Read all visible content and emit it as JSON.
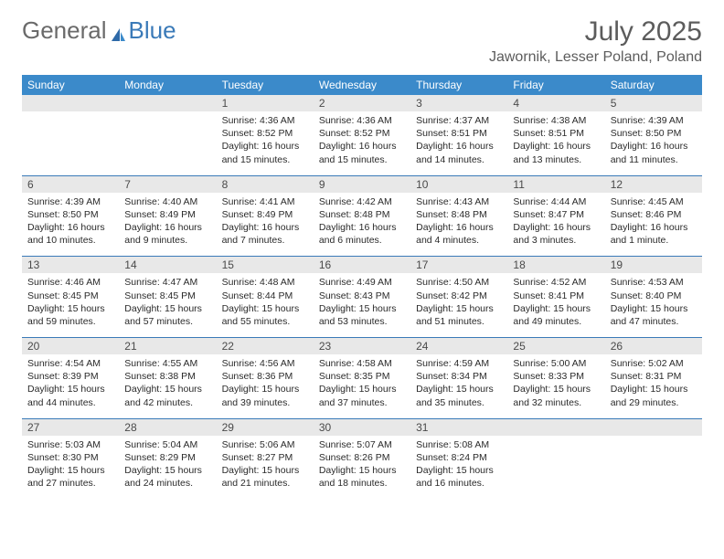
{
  "brand": {
    "part1": "General",
    "part2": "Blue"
  },
  "title": "July 2025",
  "location": "Jawornik, Lesser Poland, Poland",
  "colors": {
    "header_bg": "#3b8aca",
    "header_text": "#ffffff",
    "daynum_bg": "#e8e8e8",
    "rule": "#3a7ab8",
    "body_text": "#2a2a2a",
    "title_text": "#5c5c5c",
    "logo_gray": "#6a6a6a",
    "logo_blue": "#3a7ab8"
  },
  "dow": [
    "Sunday",
    "Monday",
    "Tuesday",
    "Wednesday",
    "Thursday",
    "Friday",
    "Saturday"
  ],
  "weeks": [
    [
      null,
      null,
      {
        "n": "1",
        "sr": "4:36 AM",
        "ss": "8:52 PM",
        "dl": "16 hours and 15 minutes."
      },
      {
        "n": "2",
        "sr": "4:36 AM",
        "ss": "8:52 PM",
        "dl": "16 hours and 15 minutes."
      },
      {
        "n": "3",
        "sr": "4:37 AM",
        "ss": "8:51 PM",
        "dl": "16 hours and 14 minutes."
      },
      {
        "n": "4",
        "sr": "4:38 AM",
        "ss": "8:51 PM",
        "dl": "16 hours and 13 minutes."
      },
      {
        "n": "5",
        "sr": "4:39 AM",
        "ss": "8:50 PM",
        "dl": "16 hours and 11 minutes."
      }
    ],
    [
      {
        "n": "6",
        "sr": "4:39 AM",
        "ss": "8:50 PM",
        "dl": "16 hours and 10 minutes."
      },
      {
        "n": "7",
        "sr": "4:40 AM",
        "ss": "8:49 PM",
        "dl": "16 hours and 9 minutes."
      },
      {
        "n": "8",
        "sr": "4:41 AM",
        "ss": "8:49 PM",
        "dl": "16 hours and 7 minutes."
      },
      {
        "n": "9",
        "sr": "4:42 AM",
        "ss": "8:48 PM",
        "dl": "16 hours and 6 minutes."
      },
      {
        "n": "10",
        "sr": "4:43 AM",
        "ss": "8:48 PM",
        "dl": "16 hours and 4 minutes."
      },
      {
        "n": "11",
        "sr": "4:44 AM",
        "ss": "8:47 PM",
        "dl": "16 hours and 3 minutes."
      },
      {
        "n": "12",
        "sr": "4:45 AM",
        "ss": "8:46 PM",
        "dl": "16 hours and 1 minute."
      }
    ],
    [
      {
        "n": "13",
        "sr": "4:46 AM",
        "ss": "8:45 PM",
        "dl": "15 hours and 59 minutes."
      },
      {
        "n": "14",
        "sr": "4:47 AM",
        "ss": "8:45 PM",
        "dl": "15 hours and 57 minutes."
      },
      {
        "n": "15",
        "sr": "4:48 AM",
        "ss": "8:44 PM",
        "dl": "15 hours and 55 minutes."
      },
      {
        "n": "16",
        "sr": "4:49 AM",
        "ss": "8:43 PM",
        "dl": "15 hours and 53 minutes."
      },
      {
        "n": "17",
        "sr": "4:50 AM",
        "ss": "8:42 PM",
        "dl": "15 hours and 51 minutes."
      },
      {
        "n": "18",
        "sr": "4:52 AM",
        "ss": "8:41 PM",
        "dl": "15 hours and 49 minutes."
      },
      {
        "n": "19",
        "sr": "4:53 AM",
        "ss": "8:40 PM",
        "dl": "15 hours and 47 minutes."
      }
    ],
    [
      {
        "n": "20",
        "sr": "4:54 AM",
        "ss": "8:39 PM",
        "dl": "15 hours and 44 minutes."
      },
      {
        "n": "21",
        "sr": "4:55 AM",
        "ss": "8:38 PM",
        "dl": "15 hours and 42 minutes."
      },
      {
        "n": "22",
        "sr": "4:56 AM",
        "ss": "8:36 PM",
        "dl": "15 hours and 39 minutes."
      },
      {
        "n": "23",
        "sr": "4:58 AM",
        "ss": "8:35 PM",
        "dl": "15 hours and 37 minutes."
      },
      {
        "n": "24",
        "sr": "4:59 AM",
        "ss": "8:34 PM",
        "dl": "15 hours and 35 minutes."
      },
      {
        "n": "25",
        "sr": "5:00 AM",
        "ss": "8:33 PM",
        "dl": "15 hours and 32 minutes."
      },
      {
        "n": "26",
        "sr": "5:02 AM",
        "ss": "8:31 PM",
        "dl": "15 hours and 29 minutes."
      }
    ],
    [
      {
        "n": "27",
        "sr": "5:03 AM",
        "ss": "8:30 PM",
        "dl": "15 hours and 27 minutes."
      },
      {
        "n": "28",
        "sr": "5:04 AM",
        "ss": "8:29 PM",
        "dl": "15 hours and 24 minutes."
      },
      {
        "n": "29",
        "sr": "5:06 AM",
        "ss": "8:27 PM",
        "dl": "15 hours and 21 minutes."
      },
      {
        "n": "30",
        "sr": "5:07 AM",
        "ss": "8:26 PM",
        "dl": "15 hours and 18 minutes."
      },
      {
        "n": "31",
        "sr": "5:08 AM",
        "ss": "8:24 PM",
        "dl": "15 hours and 16 minutes."
      },
      null,
      null
    ]
  ],
  "labels": {
    "sunrise": "Sunrise:",
    "sunset": "Sunset:",
    "daylight": "Daylight:"
  }
}
